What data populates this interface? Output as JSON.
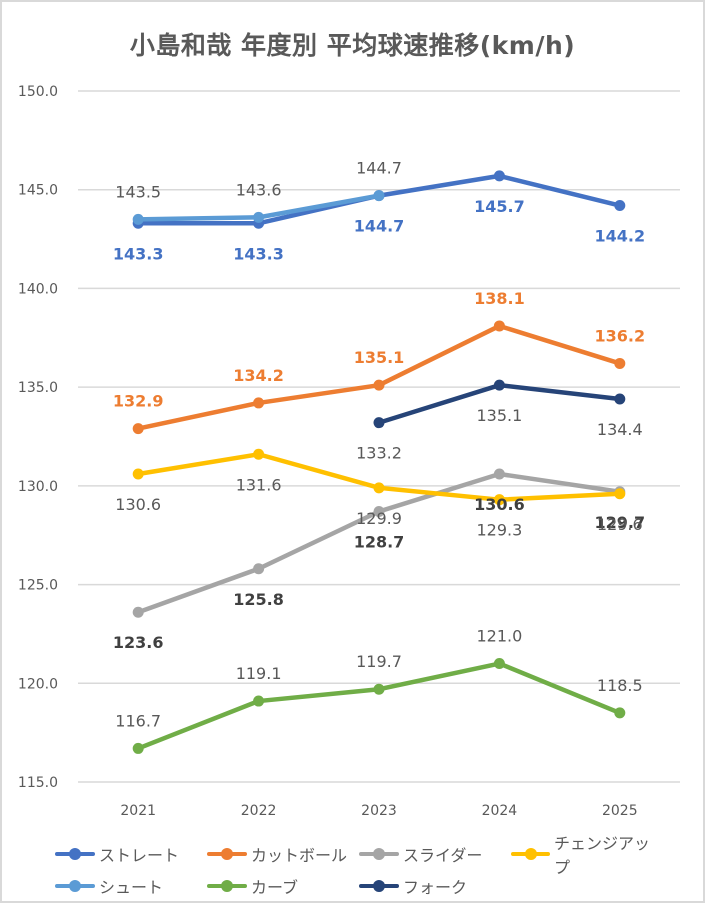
{
  "chart_data": {
    "type": "line",
    "title": "小島和哉 年度別 平均球速推移(km/h)",
    "xlabel": "",
    "ylabel": "",
    "categories": [
      "2021",
      "2022",
      "2023",
      "2024",
      "2025"
    ],
    "ylim": [
      115.0,
      150.0
    ],
    "yticks": [
      "115.0",
      "120.0",
      "125.0",
      "130.0",
      "135.0",
      "140.0",
      "145.0",
      "150.0"
    ],
    "grid": true,
    "legend_position": "bottom",
    "series": [
      {
        "name": "ストレート",
        "color": "#4472c4",
        "values": [
          143.3,
          143.3,
          144.7,
          145.7,
          144.2
        ],
        "labels": [
          "143.3",
          "143.3",
          "144.7",
          "145.7",
          "144.2"
        ],
        "label_color": "#4472c4",
        "label_bold": true,
        "label_pos": "below"
      },
      {
        "name": "カットボール",
        "color": "#ed7d31",
        "values": [
          132.9,
          134.2,
          135.1,
          138.1,
          136.2
        ],
        "labels": [
          "132.9",
          "134.2",
          "135.1",
          "138.1",
          "136.2"
        ],
        "label_color": "#ed7d31",
        "label_bold": true,
        "label_pos": "above"
      },
      {
        "name": "スライダー",
        "color": "#a5a5a5",
        "values": [
          123.6,
          125.8,
          128.7,
          130.6,
          129.7
        ],
        "labels": [
          "123.6",
          "125.8",
          "128.7",
          "130.6",
          "129.7"
        ],
        "label_color": "#404040",
        "label_bold": true,
        "label_pos": "below"
      },
      {
        "name": "チェンジアップ",
        "color": "#ffc000",
        "values": [
          130.6,
          131.6,
          129.9,
          129.3,
          129.6
        ],
        "labels": [
          "130.6",
          "131.6",
          "129.9",
          "129.3",
          "129.6"
        ],
        "label_color": "#595959",
        "label_bold": false,
        "label_pos": "below"
      },
      {
        "name": "シュート",
        "color": "#5b9bd5",
        "values": [
          143.5,
          143.6,
          144.7,
          null,
          null
        ],
        "labels": [
          "143.5",
          "143.6",
          "144.7",
          null,
          null
        ],
        "label_color": "#595959",
        "label_bold": false,
        "label_pos": "above"
      },
      {
        "name": "カーブ",
        "color": "#70ad47",
        "values": [
          116.7,
          119.1,
          119.7,
          121.0,
          118.5
        ],
        "labels": [
          "116.7",
          "119.1",
          "119.7",
          "121.0",
          "118.5"
        ],
        "label_color": "#595959",
        "label_bold": false,
        "label_pos": "above"
      },
      {
        "name": "フォーク",
        "color": "#264478",
        "values": [
          null,
          null,
          133.2,
          135.1,
          134.4
        ],
        "labels": [
          null,
          null,
          "133.2",
          "135.1",
          "134.4"
        ],
        "label_color": "#595959",
        "label_bold": false,
        "label_pos": "below"
      }
    ]
  },
  "legend": {
    "rows": [
      [
        {
          "name": "ストレート",
          "color": "#4472c4"
        },
        {
          "name": "カットボール",
          "color": "#ed7d31"
        },
        {
          "name": "スライダー",
          "color": "#a5a5a5"
        },
        {
          "name": "チェンジアップ",
          "color": "#ffc000"
        }
      ],
      [
        {
          "name": "シュート",
          "color": "#5b9bd5"
        },
        {
          "name": "カーブ",
          "color": "#70ad47"
        },
        {
          "name": "フォーク",
          "color": "#264478"
        }
      ]
    ]
  }
}
